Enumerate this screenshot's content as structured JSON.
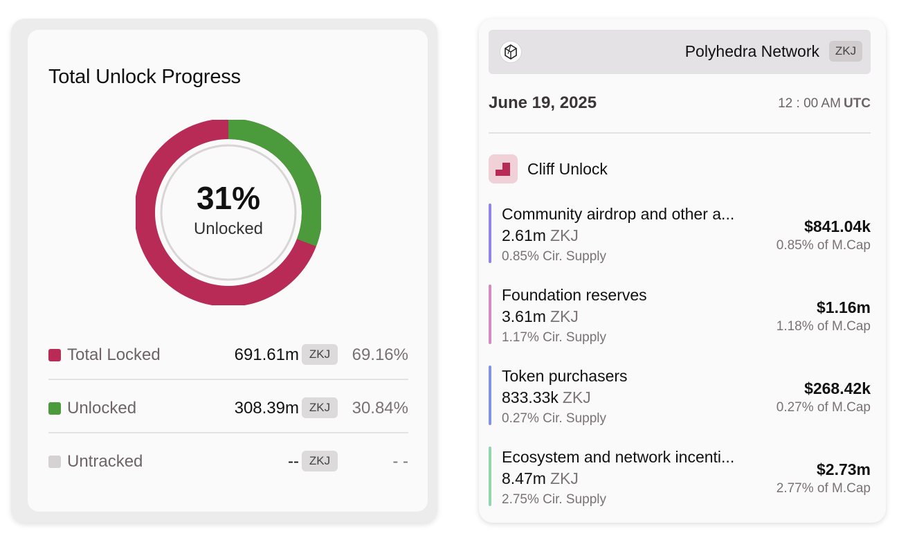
{
  "left_card": {
    "title": "Total Unlock Progress",
    "donut": {
      "percent_label": "31%",
      "sub_label": "Unlocked",
      "unlocked_fraction": 0.3084,
      "locked_color": "#b82b57",
      "unlocked_color": "#4b9b3c"
    },
    "stats": [
      {
        "label": "Total Locked",
        "value": "691.61m",
        "token": "ZKJ",
        "pct": "69.16%",
        "color": "#b82b57"
      },
      {
        "label": "Unlocked",
        "value": "308.39m",
        "token": "ZKJ",
        "pct": "30.84%",
        "color": "#4b9b3c"
      },
      {
        "label": "Untracked",
        "value": "--",
        "token": "ZKJ",
        "pct": "- -",
        "color": "#d6d2d3"
      }
    ]
  },
  "right_card": {
    "project_name": "Polyhedra Network",
    "project_token": "ZKJ",
    "date": "June 19, 2025",
    "time": "12 : 00 AM",
    "timezone": "UTC",
    "unlock_type": "Cliff Unlock",
    "allocations": [
      {
        "name": "Community airdrop and other a...",
        "amount": "2.61m",
        "token": "ZKJ",
        "supply": "0.85% Cir. Supply",
        "usd": "$841.04k",
        "mcap": "0.85% of M.Cap",
        "color": "#8f85e8"
      },
      {
        "name": "Foundation reserves",
        "amount": "3.61m",
        "token": "ZKJ",
        "supply": "1.17% Cir. Supply",
        "usd": "$1.16m",
        "mcap": "1.18% of M.Cap",
        "color": "#d58ac0"
      },
      {
        "name": "Token purchasers",
        "amount": "833.33k",
        "token": "ZKJ",
        "supply": "0.27% Cir. Supply",
        "usd": "$268.42k",
        "mcap": "0.27% of M.Cap",
        "color": "#8393df"
      },
      {
        "name": "Ecosystem and network incenti...",
        "amount": "8.47m",
        "token": "ZKJ",
        "supply": "2.75% Cir. Supply",
        "usd": "$2.73m",
        "mcap": "2.77% of M.Cap",
        "color": "#93d6ae"
      }
    ]
  }
}
